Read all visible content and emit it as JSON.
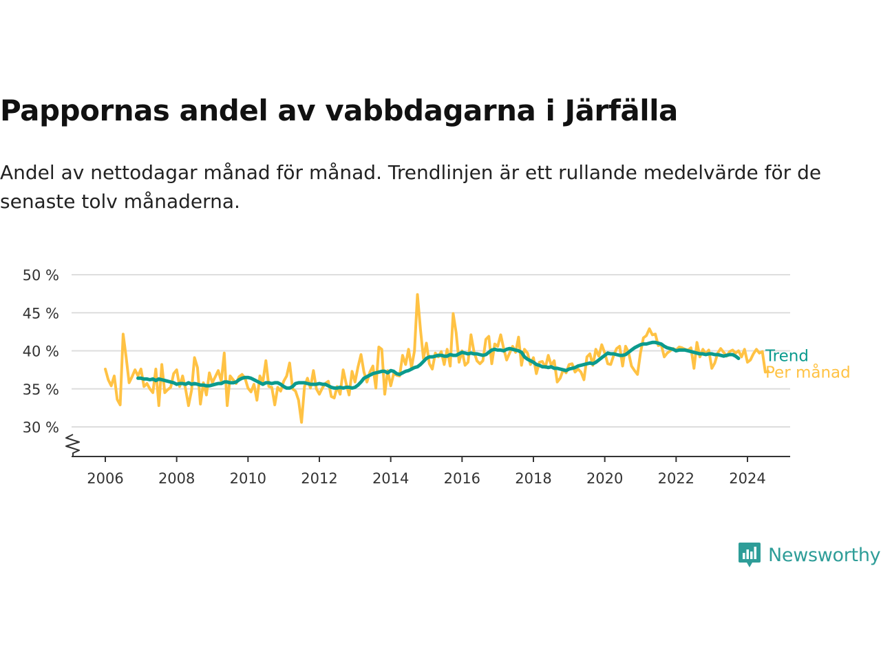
{
  "title": "Pappornas andel av vabbdagarna i Järfälla",
  "subtitle": "Andel av nettodagar månad för månad. Trendlinjen är ett rullande medelvärde för de senaste tolv månaderna.",
  "brand": {
    "name": "Newsworthy",
    "color": "#2e9d98"
  },
  "colors": {
    "monthly": "#ffc244",
    "trend": "#0b9a8d",
    "grid": "#dddddd",
    "axis": "#333333"
  },
  "chart_data": {
    "type": "line",
    "x_axis": {
      "ticks": [
        2006,
        2008,
        2010,
        2012,
        2014,
        2016,
        2018,
        2020,
        2022,
        2024
      ],
      "range": [
        2005.0,
        2025.2
      ]
    },
    "y_axis": {
      "ticks": [
        30,
        35,
        40,
        45,
        50
      ],
      "tick_labels": [
        "30 %",
        "35 %",
        "40 %",
        "45 %",
        "50 %"
      ],
      "range": [
        26,
        50
      ],
      "axis_break": true
    },
    "grid": true,
    "legend": "inline labels at line ends",
    "series": [
      {
        "name": "Per månad",
        "color": "#ffc244",
        "start": "2006-01",
        "values": [
          37.6,
          36.2,
          35.4,
          36.7,
          33.6,
          32.9,
          42.2,
          39.2,
          35.8,
          36.6,
          37.5,
          36.7,
          37.6,
          35.3,
          35.7,
          35.0,
          34.5,
          37.6,
          32.8,
          38.2,
          34.5,
          34.9,
          35.2,
          37.0,
          37.5,
          35.3,
          36.7,
          35.0,
          32.8,
          34.8,
          39.1,
          37.8,
          33.0,
          35.8,
          34.2,
          37.1,
          35.8,
          36.6,
          37.4,
          36.0,
          39.7,
          32.8,
          36.7,
          36.2,
          35.7,
          36.6,
          36.9,
          36.4,
          35.1,
          34.6,
          35.6,
          33.5,
          36.7,
          35.9,
          38.7,
          35.3,
          35.2,
          32.9,
          35.2,
          34.7,
          36.0,
          36.7,
          38.4,
          35.0,
          34.7,
          33.5,
          30.6,
          35.3,
          36.4,
          35.1,
          37.4,
          35.0,
          34.3,
          35.1,
          35.7,
          36.0,
          34.0,
          33.8,
          35.3,
          34.3,
          37.5,
          35.7,
          34.2,
          37.3,
          35.9,
          37.9,
          39.5,
          37.2,
          35.9,
          37.2,
          38.0,
          35.1,
          40.5,
          40.2,
          34.3,
          37.4,
          35.4,
          37.0,
          36.8,
          36.7,
          39.4,
          38.2,
          40.2,
          37.8,
          40.0,
          47.4,
          42.8,
          39.0,
          41.0,
          38.3,
          37.6,
          39.7,
          39.2,
          39.9,
          38.2,
          40.2,
          38.0,
          44.9,
          42.4,
          38.5,
          40.0,
          38.1,
          38.5,
          42.1,
          39.9,
          38.7,
          38.3,
          38.7,
          41.5,
          41.9,
          38.3,
          40.9,
          40.6,
          42.1,
          40.3,
          38.8,
          39.7,
          40.6,
          39.8,
          41.8,
          38.1,
          40.2,
          39.7,
          38.2,
          39.1,
          37.0,
          38.5,
          38.6,
          37.8,
          39.4,
          38.1,
          38.7,
          35.9,
          36.4,
          37.5,
          37.1,
          38.2,
          38.3,
          37.2,
          37.6,
          37.2,
          36.2,
          39.2,
          39.6,
          38.1,
          40.2,
          39.3,
          40.8,
          39.7,
          38.3,
          38.2,
          39.4,
          40.3,
          40.6,
          38.0,
          40.6,
          39.8,
          38.0,
          37.4,
          36.9,
          39.7,
          41.7,
          42.0,
          42.9,
          42.1,
          42.2,
          40.7,
          40.8,
          39.2,
          39.7,
          40.0,
          40.3,
          40.1,
          40.5,
          40.4,
          40.2,
          40.1,
          40.4,
          37.7,
          41.1,
          39.2,
          40.2,
          39.6,
          40.1,
          37.7,
          38.4,
          39.7,
          40.3,
          39.8,
          39.3,
          39.9,
          40.1,
          39.7,
          40.0,
          39.2,
          40.2,
          38.5,
          38.8,
          39.6,
          40.2,
          39.7,
          39.9,
          37.2,
          37.3
        ]
      },
      {
        "name": "Trend",
        "color": "#0b9a8d",
        "start": "2006-12",
        "values": [
          36.4,
          36.4,
          36.3,
          36.3,
          36.2,
          36.3,
          36.1,
          36.3,
          36.2,
          36.1,
          36.0,
          35.9,
          35.8,
          35.6,
          35.7,
          35.7,
          35.6,
          35.8,
          35.6,
          35.7,
          35.6,
          35.5,
          35.5,
          35.4,
          35.4,
          35.5,
          35.6,
          35.7,
          35.7,
          35.9,
          35.9,
          35.8,
          35.8,
          35.9,
          36.2,
          36.4,
          36.5,
          36.5,
          36.4,
          36.2,
          36.0,
          35.8,
          35.6,
          35.8,
          35.8,
          35.7,
          35.8,
          35.8,
          35.6,
          35.3,
          35.1,
          35.1,
          35.3,
          35.7,
          35.8,
          35.8,
          35.8,
          35.7,
          35.6,
          35.6,
          35.6,
          35.7,
          35.6,
          35.6,
          35.4,
          35.2,
          35.1,
          35.1,
          35.2,
          35.1,
          35.2,
          35.2,
          35.1,
          35.2,
          35.5,
          35.9,
          36.4,
          36.6,
          36.8,
          37.0,
          37.1,
          37.2,
          37.3,
          37.3,
          37.1,
          37.4,
          37.3,
          37.0,
          36.9,
          37.1,
          37.3,
          37.4,
          37.6,
          37.8,
          37.9,
          38.2,
          38.6,
          39.0,
          39.2,
          39.2,
          39.3,
          39.4,
          39.4,
          39.3,
          39.3,
          39.5,
          39.4,
          39.4,
          39.6,
          39.8,
          39.7,
          39.6,
          39.7,
          39.6,
          39.6,
          39.5,
          39.4,
          39.5,
          39.8,
          40.1,
          40.2,
          40.1,
          40.1,
          40.0,
          40.2,
          40.3,
          40.2,
          40.1,
          40.0,
          39.8,
          39.2,
          38.9,
          38.7,
          38.5,
          38.2,
          38.1,
          37.9,
          37.9,
          37.8,
          37.9,
          37.7,
          37.7,
          37.6,
          37.5,
          37.4,
          37.6,
          37.7,
          37.8,
          38.0,
          38.1,
          38.2,
          38.3,
          38.4,
          38.3,
          38.5,
          38.8,
          39.1,
          39.4,
          39.7,
          39.6,
          39.6,
          39.5,
          39.4,
          39.4,
          39.5,
          39.8,
          40.1,
          40.4,
          40.6,
          40.8,
          40.9,
          40.9,
          41.0,
          41.1,
          41.1,
          41.0,
          40.9,
          40.6,
          40.4,
          40.3,
          40.2,
          40.0,
          40.1,
          40.1,
          40.1,
          40.0,
          39.9,
          39.8,
          39.7,
          39.6,
          39.6,
          39.5,
          39.6,
          39.6,
          39.5,
          39.5,
          39.4,
          39.3,
          39.4,
          39.5,
          39.5,
          39.3,
          39.0
        ]
      }
    ]
  }
}
